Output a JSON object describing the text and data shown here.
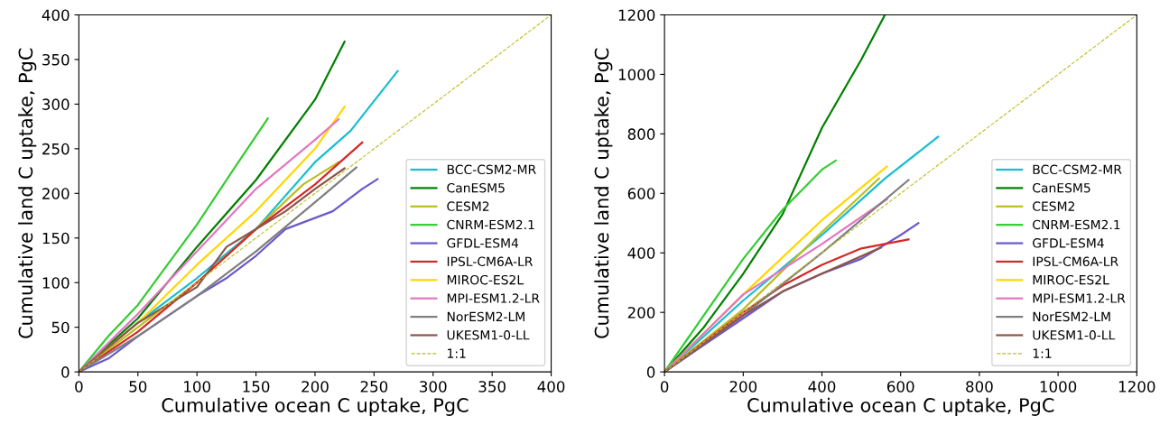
{
  "chart_data": [
    {
      "type": "line",
      "xlabel": "Cumulative ocean C uptake, PgC",
      "ylabel": "Cumulative land C uptake, PgC",
      "xlim": [
        0,
        400
      ],
      "ylim": [
        0,
        400
      ],
      "xticks": [
        0,
        50,
        100,
        150,
        200,
        250,
        300,
        350,
        400
      ],
      "yticks": [
        0,
        50,
        100,
        150,
        200,
        250,
        300,
        350,
        400
      ],
      "grid": false,
      "legend": "lower right",
      "series": [
        {
          "name": "BCC-CSM2-MR",
          "color": "#17becf",
          "x": [
            0,
            50,
            100,
            150,
            200,
            230,
            270
          ],
          "values": [
            0,
            55,
            105,
            160,
            235,
            270,
            337
          ]
        },
        {
          "name": "CanESM5",
          "color": "#008000",
          "x": [
            0,
            50,
            100,
            150,
            200,
            225
          ],
          "values": [
            0,
            60,
            140,
            215,
            305,
            370
          ]
        },
        {
          "name": "CESM2",
          "color": "#bcbd22",
          "x": [
            0,
            50,
            100,
            150,
            190,
            220
          ],
          "values": [
            0,
            50,
            100,
            160,
            210,
            235
          ]
        },
        {
          "name": "CNRM-ESM2.1",
          "color": "#33cc33",
          "x": [
            0,
            25,
            50,
            100,
            130,
            160
          ],
          "values": [
            0,
            40,
            75,
            165,
            225,
            284
          ]
        },
        {
          "name": "GFDL-ESM4",
          "color": "#6a5acd",
          "x": [
            0,
            25,
            50,
            100,
            125,
            150,
            175,
            215,
            240,
            253
          ],
          "values": [
            0,
            15,
            40,
            85,
            105,
            130,
            160,
            180,
            205,
            216
          ]
        },
        {
          "name": "IPSL-CM6A-LR",
          "color": "#d62728",
          "x": [
            0,
            50,
            100,
            150,
            200,
            240
          ],
          "values": [
            0,
            45,
            100,
            160,
            210,
            257
          ]
        },
        {
          "name": "MIROC-ES2L",
          "color": "#ffd700",
          "x": [
            0,
            50,
            100,
            150,
            200,
            225
          ],
          "values": [
            0,
            55,
            120,
            180,
            250,
            297
          ]
        },
        {
          "name": "MPI-ESM1.2-LR",
          "color": "#e377c2",
          "x": [
            0,
            50,
            100,
            150,
            200,
            220
          ],
          "values": [
            0,
            65,
            135,
            205,
            260,
            283
          ]
        },
        {
          "name": "NorESM2-LM",
          "color": "#7f7f7f",
          "x": [
            0,
            50,
            100,
            150,
            200,
            235
          ],
          "values": [
            0,
            40,
            85,
            135,
            190,
            229
          ]
        },
        {
          "name": "UKESM1-0-LL",
          "color": "#8c564b",
          "x": [
            0,
            50,
            100,
            125,
            175,
            200,
            225
          ],
          "values": [
            0,
            55,
            95,
            140,
            180,
            205,
            228
          ]
        },
        {
          "name": "1:1",
          "color": "#bcbd22",
          "line_style": "dashed",
          "x": [
            0,
            400
          ],
          "values": [
            0,
            400
          ]
        }
      ]
    },
    {
      "type": "line",
      "xlabel": "Cumulative ocean C uptake, PgC",
      "ylabel": "Cumulative land C uptake, PgC",
      "xlim": [
        0,
        1200
      ],
      "ylim": [
        0,
        1200
      ],
      "xticks": [
        0,
        200,
        400,
        600,
        800,
        1000,
        1200
      ],
      "yticks": [
        0,
        200,
        400,
        600,
        800,
        1000,
        1200
      ],
      "grid": false,
      "legend": "lower right",
      "series": [
        {
          "name": "BCC-CSM2-MR",
          "color": "#17becf",
          "x": [
            0,
            200,
            400,
            560,
            695
          ],
          "values": [
            0,
            240,
            460,
            650,
            790
          ]
        },
        {
          "name": "CanESM5",
          "color": "#008000",
          "x": [
            0,
            100,
            200,
            300,
            400,
            500,
            560
          ],
          "values": [
            0,
            150,
            330,
            530,
            820,
            1050,
            1200
          ]
        },
        {
          "name": "CESM2",
          "color": "#bcbd22",
          "x": [
            0,
            200,
            400,
            545
          ],
          "values": [
            0,
            210,
            470,
            650
          ]
        },
        {
          "name": "CNRM-ESM2.1",
          "color": "#33cc33",
          "x": [
            0,
            100,
            200,
            300,
            400,
            435
          ],
          "values": [
            0,
            190,
            380,
            545,
            680,
            710
          ]
        },
        {
          "name": "GFDL-ESM4",
          "color": "#6a5acd",
          "x": [
            0,
            100,
            200,
            300,
            400,
            500,
            600,
            645
          ],
          "values": [
            0,
            90,
            180,
            270,
            330,
            380,
            460,
            500
          ]
        },
        {
          "name": "IPSL-CM6A-LR",
          "color": "#d62728",
          "x": [
            0,
            200,
            300,
            400,
            500,
            620
          ],
          "values": [
            0,
            200,
            290,
            360,
            415,
            445
          ]
        },
        {
          "name": "MIROC-ES2L",
          "color": "#ffd700",
          "x": [
            0,
            200,
            400,
            565
          ],
          "values": [
            0,
            260,
            510,
            690
          ]
        },
        {
          "name": "MPI-ESM1.2-LR",
          "color": "#e377c2",
          "x": [
            0,
            200,
            400,
            565
          ],
          "values": [
            0,
            260,
            430,
            580
          ]
        },
        {
          "name": "NorESM2-LM",
          "color": "#7f7f7f",
          "x": [
            0,
            200,
            400,
            620
          ],
          "values": [
            0,
            190,
            400,
            645
          ]
        },
        {
          "name": "UKESM1-0-LL",
          "color": "#8c564b",
          "x": [
            0,
            200,
            300,
            400,
            550
          ],
          "values": [
            0,
            190,
            270,
            330,
            418
          ]
        },
        {
          "name": "1:1",
          "color": "#bcbd22",
          "line_style": "dashed",
          "x": [
            0,
            1200
          ],
          "values": [
            0,
            1200
          ]
        }
      ]
    }
  ]
}
